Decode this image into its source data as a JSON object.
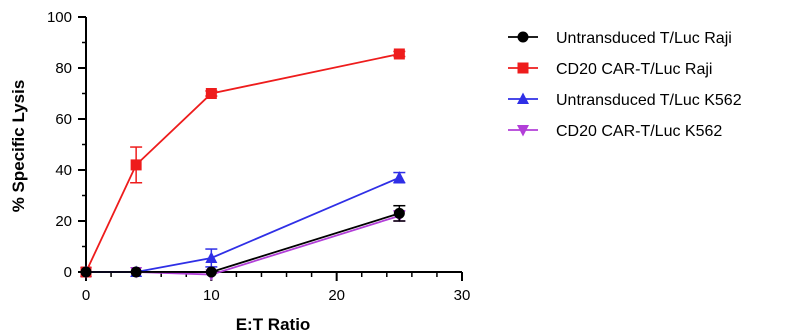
{
  "chart_data": {
    "type": "line",
    "xlabel": "E:T Ratio",
    "ylabel": "% Specific Lysis",
    "xlim": [
      0,
      30
    ],
    "ylim": [
      0,
      100
    ],
    "x_ticks": [
      0,
      10,
      20,
      30
    ],
    "y_ticks": [
      0,
      20,
      40,
      60,
      80,
      100
    ],
    "x_tick_labels": [
      "0",
      "10",
      "20",
      "30"
    ],
    "y_tick_labels": [
      "0",
      "20",
      "40",
      "60",
      "80",
      "100"
    ],
    "grid": false,
    "legend_position": "right",
    "series": [
      {
        "name": "Untransduced T/Luc Raji",
        "color": "#000000",
        "marker": "circle",
        "x": [
          0,
          4,
          10,
          25
        ],
        "y": [
          0,
          0,
          0,
          23
        ],
        "err": [
          0,
          0,
          0,
          3
        ]
      },
      {
        "name": "CD20 CAR-T/Luc Raji",
        "color": "#ee1c1c",
        "marker": "square",
        "x": [
          0,
          4,
          10,
          25
        ],
        "y": [
          0,
          42,
          70,
          85.5
        ],
        "err": [
          0,
          7,
          1,
          1
        ]
      },
      {
        "name": "Untransduced T/Luc K562",
        "color": "#2f2fe6",
        "marker": "triangle-up",
        "x": [
          0,
          4,
          10,
          25
        ],
        "y": [
          0,
          0,
          5.5,
          37
        ],
        "err": [
          0,
          0,
          3.5,
          2
        ]
      },
      {
        "name": "CD20 CAR-T/Luc K562",
        "color": "#b23fd8",
        "marker": "triangle-down",
        "x": [
          0,
          4,
          10,
          25
        ],
        "y": [
          0,
          0,
          -1,
          22
        ],
        "err": [
          0,
          0,
          0,
          2
        ]
      }
    ]
  }
}
